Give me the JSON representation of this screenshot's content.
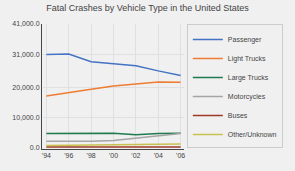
{
  "chart_data": {
    "type": "line",
    "title": "Fatal Crashes by Vehicle Type in the United States",
    "x": [
      1994,
      1996,
      1998,
      2000,
      2002,
      2004,
      2006
    ],
    "xlim": [
      1993.7,
      2006.3
    ],
    "xticks": [
      {
        "value": 1994,
        "label": "'94"
      },
      {
        "value": 1996,
        "label": "'96"
      },
      {
        "value": 1998,
        "label": "'98"
      },
      {
        "value": 2000,
        "label": "'00"
      },
      {
        "value": 2002,
        "label": "'02"
      },
      {
        "value": 2004,
        "label": "'04"
      },
      {
        "value": 2006,
        "label": "'06"
      }
    ],
    "ylim": [
      0,
      41000
    ],
    "yticks": [
      {
        "value": 0,
        "label": "0.0"
      },
      {
        "value": 10000,
        "label": "10,000.0"
      },
      {
        "value": 20000,
        "label": "20,000.0"
      },
      {
        "value": 31000,
        "label": "31,000.0"
      },
      {
        "value": 41000,
        "label": "41,000.0"
      }
    ],
    "grid": true,
    "legend": "right",
    "series": [
      {
        "name": "Passenger",
        "color": "#4472C4",
        "values": [
          30950,
          31100,
          28500,
          27800,
          27200,
          25500,
          24000
        ]
      },
      {
        "name": "Light Trucks",
        "color": "#ED7D31",
        "values": [
          17200,
          18200,
          19400,
          20500,
          21200,
          21800,
          21700
        ]
      },
      {
        "name": "Large Trucks",
        "color": "#1F7A4F",
        "values": [
          4800,
          4900,
          5000,
          4900,
          4400,
          4800,
          4900
        ]
      },
      {
        "name": "Motorcycles",
        "color": "#A5A5A5",
        "values": [
          2200,
          2200,
          2200,
          2500,
          3200,
          4000,
          4800
        ]
      },
      {
        "name": "Buses",
        "color": "#9E3A26",
        "values": [
          300,
          320,
          350,
          350,
          300,
          280,
          300
        ]
      },
      {
        "name": "Other/Unknown",
        "color": "#C9C04E",
        "values": [
          800,
          900,
          1000,
          1100,
          1100,
          1200,
          1300
        ]
      }
    ]
  }
}
